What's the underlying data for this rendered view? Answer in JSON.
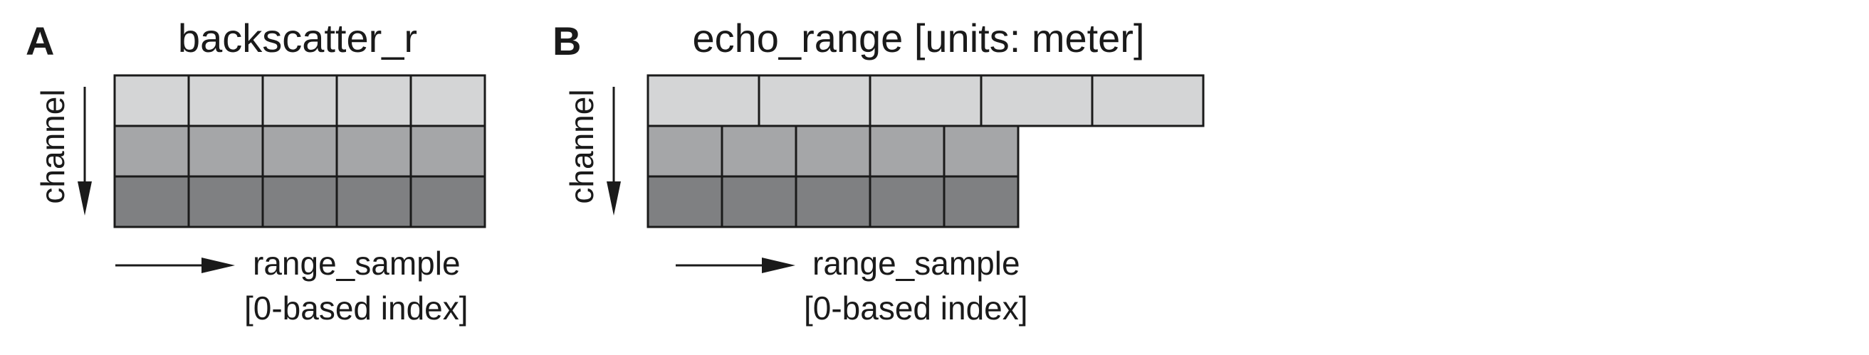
{
  "colors": {
    "row_light": "#d4d5d6",
    "row_medium": "#a5a6a8",
    "row_dark": "#7f8082",
    "stroke": "#1a1a1a"
  },
  "panels": [
    {
      "letter": "A",
      "title": "backscatter_r",
      "y_axis_label": "channel",
      "x_axis_label_line1": "range_sample",
      "x_axis_label_line2": "[0-based index]",
      "rows": [
        {
          "cells": 5,
          "cell_width_units": 1
        },
        {
          "cells": 5,
          "cell_width_units": 1
        },
        {
          "cells": 5,
          "cell_width_units": 1
        }
      ]
    },
    {
      "letter": "B",
      "title": "echo_range [units: meter]",
      "y_axis_label": "channel",
      "x_axis_label_line1": "range_sample",
      "x_axis_label_line2": "[0-based index]",
      "rows": [
        {
          "cells": 5,
          "cell_width_units": 1.5
        },
        {
          "cells": 5,
          "cell_width_units": 1
        },
        {
          "cells": 5,
          "cell_width_units": 1
        }
      ]
    }
  ]
}
